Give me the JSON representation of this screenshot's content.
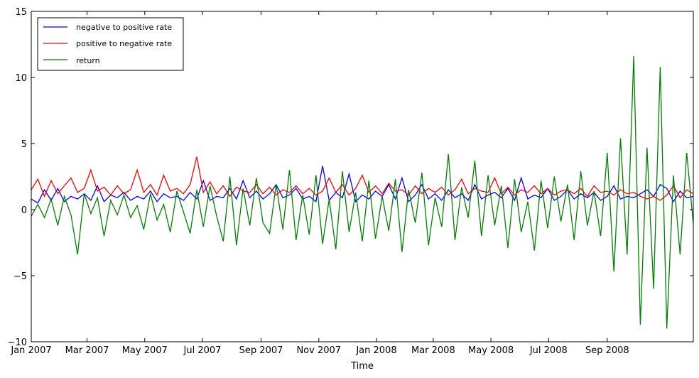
{
  "chart_data": {
    "type": "line",
    "xlabel": "Time",
    "ylabel": "",
    "title": "",
    "x_domain": [
      "2007-01-01",
      "2008-12-01"
    ],
    "ylim": [
      -10,
      15
    ],
    "y_ticks": [
      -10,
      -5,
      0,
      5,
      10,
      15
    ],
    "y_tick_labels": [
      "−10",
      "−5",
      "0",
      "5",
      "10",
      "15"
    ],
    "x_ticks": [
      "2007-01-01",
      "2007-03-01",
      "2007-05-01",
      "2007-07-01",
      "2007-09-01",
      "2007-11-01",
      "2008-01-01",
      "2008-03-01",
      "2008-05-01",
      "2008-07-01",
      "2008-09-01"
    ],
    "x_tick_labels": [
      "Jan 2007",
      "Mar 2007",
      "May 2007",
      "Jul 2007",
      "Sep 2007",
      "Nov 2007",
      "Jan 2008",
      "Mar 2008",
      "May 2008",
      "Jul 2008",
      "Sep 2008"
    ],
    "grid": false,
    "legend_position": "top-left",
    "series": [
      {
        "name": "negative to positive rate",
        "color": "#0000ff",
        "x": [
          "2007-01-01",
          "2007-01-08",
          "2007-01-15",
          "2007-01-22",
          "2007-01-29",
          "2007-02-05",
          "2007-02-12",
          "2007-02-19",
          "2007-02-26",
          "2007-03-05",
          "2007-03-12",
          "2007-03-19",
          "2007-03-26",
          "2007-04-02",
          "2007-04-09",
          "2007-04-16",
          "2007-04-23",
          "2007-04-30",
          "2007-05-07",
          "2007-05-14",
          "2007-05-21",
          "2007-05-28",
          "2007-06-04",
          "2007-06-11",
          "2007-06-18",
          "2007-06-25",
          "2007-07-02",
          "2007-07-09",
          "2007-07-16",
          "2007-07-23",
          "2007-07-30",
          "2007-08-06",
          "2007-08-13",
          "2007-08-20",
          "2007-08-27",
          "2007-09-03",
          "2007-09-10",
          "2007-09-17",
          "2007-09-24",
          "2007-10-01",
          "2007-10-08",
          "2007-10-15",
          "2007-10-22",
          "2007-10-29",
          "2007-11-05",
          "2007-11-12",
          "2007-11-19",
          "2007-11-26",
          "2007-12-03",
          "2007-12-10",
          "2007-12-17",
          "2007-12-24",
          "2007-12-31",
          "2008-01-07",
          "2008-01-14",
          "2008-01-21",
          "2008-01-28",
          "2008-02-04",
          "2008-02-11",
          "2008-02-18",
          "2008-02-25",
          "2008-03-03",
          "2008-03-10",
          "2008-03-17",
          "2008-03-24",
          "2008-03-31",
          "2008-04-07",
          "2008-04-14",
          "2008-04-21",
          "2008-04-28",
          "2008-05-05",
          "2008-05-12",
          "2008-05-19",
          "2008-05-26",
          "2008-06-02",
          "2008-06-09",
          "2008-06-16",
          "2008-06-23",
          "2008-06-30",
          "2008-07-07",
          "2008-07-14",
          "2008-07-21",
          "2008-07-28",
          "2008-08-04",
          "2008-08-11",
          "2008-08-18",
          "2008-08-25",
          "2008-09-01",
          "2008-09-08",
          "2008-09-15",
          "2008-09-22",
          "2008-09-29",
          "2008-10-06",
          "2008-10-13",
          "2008-10-20",
          "2008-10-27",
          "2008-11-03",
          "2008-11-10",
          "2008-11-17",
          "2008-11-24",
          "2008-12-01"
        ],
        "values": [
          0.8,
          0.5,
          1.5,
          0.7,
          1.6,
          0.6,
          1.0,
          0.8,
          1.2,
          0.7,
          1.8,
          0.6,
          1.1,
          0.9,
          1.3,
          0.7,
          1.0,
          0.8,
          1.4,
          0.6,
          1.2,
          0.9,
          1.0,
          0.7,
          1.3,
          0.8,
          2.2,
          0.7,
          1.0,
          0.9,
          1.6,
          0.8,
          2.2,
          0.9,
          1.4,
          0.8,
          1.2,
          1.9,
          0.9,
          1.1,
          1.6,
          0.8,
          1.0,
          0.6,
          3.3,
          0.7,
          1.3,
          0.9,
          2.7,
          0.6,
          1.1,
          0.8,
          1.4,
          1.0,
          1.9,
          0.8,
          2.4,
          0.6,
          1.1,
          1.9,
          0.8,
          1.2,
          0.7,
          1.5,
          0.9,
          1.2,
          0.7,
          1.9,
          0.8,
          1.1,
          1.3,
          0.9,
          1.6,
          0.7,
          2.4,
          0.8,
          1.1,
          0.9,
          1.6,
          0.7,
          1.0,
          1.5,
          0.8,
          1.2,
          0.9,
          1.3,
          0.7,
          1.0,
          1.8,
          0.8,
          1.0,
          0.9,
          1.2,
          1.5,
          1.0,
          1.9,
          1.6,
          0.6,
          1.4,
          0.9,
          1.0
        ]
      },
      {
        "name": "positive to negative rate",
        "color": "#ff0000",
        "x": [
          "2007-01-01",
          "2007-01-08",
          "2007-01-15",
          "2007-01-22",
          "2007-01-29",
          "2007-02-05",
          "2007-02-12",
          "2007-02-19",
          "2007-02-26",
          "2007-03-05",
          "2007-03-12",
          "2007-03-19",
          "2007-03-26",
          "2007-04-02",
          "2007-04-09",
          "2007-04-16",
          "2007-04-23",
          "2007-04-30",
          "2007-05-07",
          "2007-05-14",
          "2007-05-21",
          "2007-05-28",
          "2007-06-04",
          "2007-06-11",
          "2007-06-18",
          "2007-06-25",
          "2007-07-02",
          "2007-07-09",
          "2007-07-16",
          "2007-07-23",
          "2007-07-30",
          "2007-08-06",
          "2007-08-13",
          "2007-08-20",
          "2007-08-27",
          "2007-09-03",
          "2007-09-10",
          "2007-09-17",
          "2007-09-24",
          "2007-10-01",
          "2007-10-08",
          "2007-10-15",
          "2007-10-22",
          "2007-10-29",
          "2007-11-05",
          "2007-11-12",
          "2007-11-19",
          "2007-11-26",
          "2007-12-03",
          "2007-12-10",
          "2007-12-17",
          "2007-12-24",
          "2007-12-31",
          "2008-01-07",
          "2008-01-14",
          "2008-01-21",
          "2008-01-28",
          "2008-02-04",
          "2008-02-11",
          "2008-02-18",
          "2008-02-25",
          "2008-03-03",
          "2008-03-10",
          "2008-03-17",
          "2008-03-24",
          "2008-03-31",
          "2008-04-07",
          "2008-04-14",
          "2008-04-21",
          "2008-04-28",
          "2008-05-05",
          "2008-05-12",
          "2008-05-19",
          "2008-05-26",
          "2008-06-02",
          "2008-06-09",
          "2008-06-16",
          "2008-06-23",
          "2008-06-30",
          "2008-07-07",
          "2008-07-14",
          "2008-07-21",
          "2008-07-28",
          "2008-08-04",
          "2008-08-11",
          "2008-08-18",
          "2008-08-25",
          "2008-09-01",
          "2008-09-08",
          "2008-09-15",
          "2008-09-22",
          "2008-09-29",
          "2008-10-06",
          "2008-10-13",
          "2008-10-20",
          "2008-10-27",
          "2008-11-03",
          "2008-11-10",
          "2008-11-17",
          "2008-11-24",
          "2008-12-01"
        ],
        "values": [
          1.5,
          2.3,
          1.0,
          2.2,
          1.2,
          1.8,
          2.4,
          1.3,
          1.6,
          3.0,
          1.4,
          1.7,
          1.1,
          1.8,
          1.2,
          1.5,
          3.0,
          1.3,
          1.9,
          1.1,
          2.6,
          1.4,
          1.6,
          1.2,
          1.9,
          4.0,
          1.3,
          2.1,
          1.2,
          1.8,
          1.0,
          1.7,
          1.4,
          1.3,
          1.9,
          1.2,
          1.7,
          1.1,
          1.5,
          1.3,
          1.8,
          1.2,
          1.6,
          1.1,
          1.4,
          2.4,
          1.3,
          1.9,
          1.1,
          1.6,
          2.6,
          1.3,
          1.8,
          1.2,
          2.0,
          1.4,
          1.5,
          1.1,
          1.8,
          1.2,
          1.6,
          1.3,
          1.7,
          1.1,
          1.5,
          2.3,
          1.2,
          1.6,
          1.4,
          1.3,
          2.4,
          1.2,
          1.7,
          1.1,
          1.5,
          1.3,
          1.8,
          1.2,
          1.6,
          1.1,
          1.4,
          1.5,
          1.2,
          1.6,
          1.0,
          1.8,
          1.3,
          1.4,
          1.1,
          1.5,
          1.2,
          1.3,
          1.0,
          0.8,
          1.0,
          0.7,
          1.1,
          1.8,
          0.9,
          1.5,
          1.2
        ]
      },
      {
        "name": "return",
        "color": "#008000",
        "x": [
          "2007-01-01",
          "2007-01-08",
          "2007-01-15",
          "2007-01-22",
          "2007-01-29",
          "2007-02-05",
          "2007-02-12",
          "2007-02-19",
          "2007-02-26",
          "2007-03-05",
          "2007-03-12",
          "2007-03-19",
          "2007-03-26",
          "2007-04-02",
          "2007-04-09",
          "2007-04-16",
          "2007-04-23",
          "2007-04-30",
          "2007-05-07",
          "2007-05-14",
          "2007-05-21",
          "2007-05-28",
          "2007-06-04",
          "2007-06-11",
          "2007-06-18",
          "2007-06-25",
          "2007-07-02",
          "2007-07-09",
          "2007-07-16",
          "2007-07-23",
          "2007-07-30",
          "2007-08-06",
          "2007-08-13",
          "2007-08-20",
          "2007-08-27",
          "2007-09-03",
          "2007-09-10",
          "2007-09-17",
          "2007-09-24",
          "2007-10-01",
          "2007-10-08",
          "2007-10-15",
          "2007-10-22",
          "2007-10-29",
          "2007-11-05",
          "2007-11-12",
          "2007-11-19",
          "2007-11-26",
          "2007-12-03",
          "2007-12-10",
          "2007-12-17",
          "2007-12-24",
          "2007-12-31",
          "2008-01-07",
          "2008-01-14",
          "2008-01-21",
          "2008-01-28",
          "2008-02-04",
          "2008-02-11",
          "2008-02-18",
          "2008-02-25",
          "2008-03-03",
          "2008-03-10",
          "2008-03-17",
          "2008-03-24",
          "2008-03-31",
          "2008-04-07",
          "2008-04-14",
          "2008-04-21",
          "2008-04-28",
          "2008-05-05",
          "2008-05-12",
          "2008-05-19",
          "2008-05-26",
          "2008-06-02",
          "2008-06-09",
          "2008-06-16",
          "2008-06-23",
          "2008-06-30",
          "2008-07-07",
          "2008-07-14",
          "2008-07-21",
          "2008-07-28",
          "2008-08-04",
          "2008-08-11",
          "2008-08-18",
          "2008-08-25",
          "2008-09-01",
          "2008-09-08",
          "2008-09-15",
          "2008-09-22",
          "2008-09-29",
          "2008-10-06",
          "2008-10-13",
          "2008-10-20",
          "2008-10-27",
          "2008-11-03",
          "2008-11-10",
          "2008-11-17",
          "2008-11-24",
          "2008-12-01"
        ],
        "values": [
          -0.5,
          0.4,
          -0.6,
          0.8,
          -1.2,
          1.0,
          -0.4,
          -3.4,
          1.2,
          -0.3,
          0.9,
          -2.0,
          0.7,
          -0.4,
          1.1,
          -0.6,
          0.3,
          -1.5,
          1.2,
          -0.8,
          0.4,
          -1.7,
          1.4,
          -0.2,
          -1.8,
          1.5,
          -1.3,
          1.8,
          -0.5,
          -2.4,
          2.5,
          -2.7,
          1.6,
          -1.2,
          2.4,
          -1.0,
          -1.8,
          1.9,
          -1.5,
          3.0,
          -2.3,
          1.1,
          -1.9,
          2.6,
          -2.6,
          0.8,
          -3.0,
          2.9,
          -1.7,
          1.3,
          -2.4,
          2.2,
          -2.2,
          1.0,
          -1.6,
          2.3,
          -3.2,
          1.5,
          -1.0,
          2.8,
          -2.7,
          0.9,
          -1.3,
          4.2,
          -2.3,
          1.7,
          -0.6,
          3.7,
          -2.0,
          2.6,
          -1.2,
          1.8,
          -2.9,
          2.3,
          -1.7,
          0.6,
          -3.1,
          2.2,
          -1.4,
          2.5,
          -0.9,
          1.9,
          -2.3,
          2.9,
          -1.2,
          1.4,
          -2.0,
          4.3,
          -4.7,
          5.4,
          -3.4,
          11.6,
          -8.7,
          4.7,
          -6.0,
          10.8,
          -9.0,
          2.6,
          -3.4,
          4.3,
          -1.1
        ]
      }
    ]
  }
}
